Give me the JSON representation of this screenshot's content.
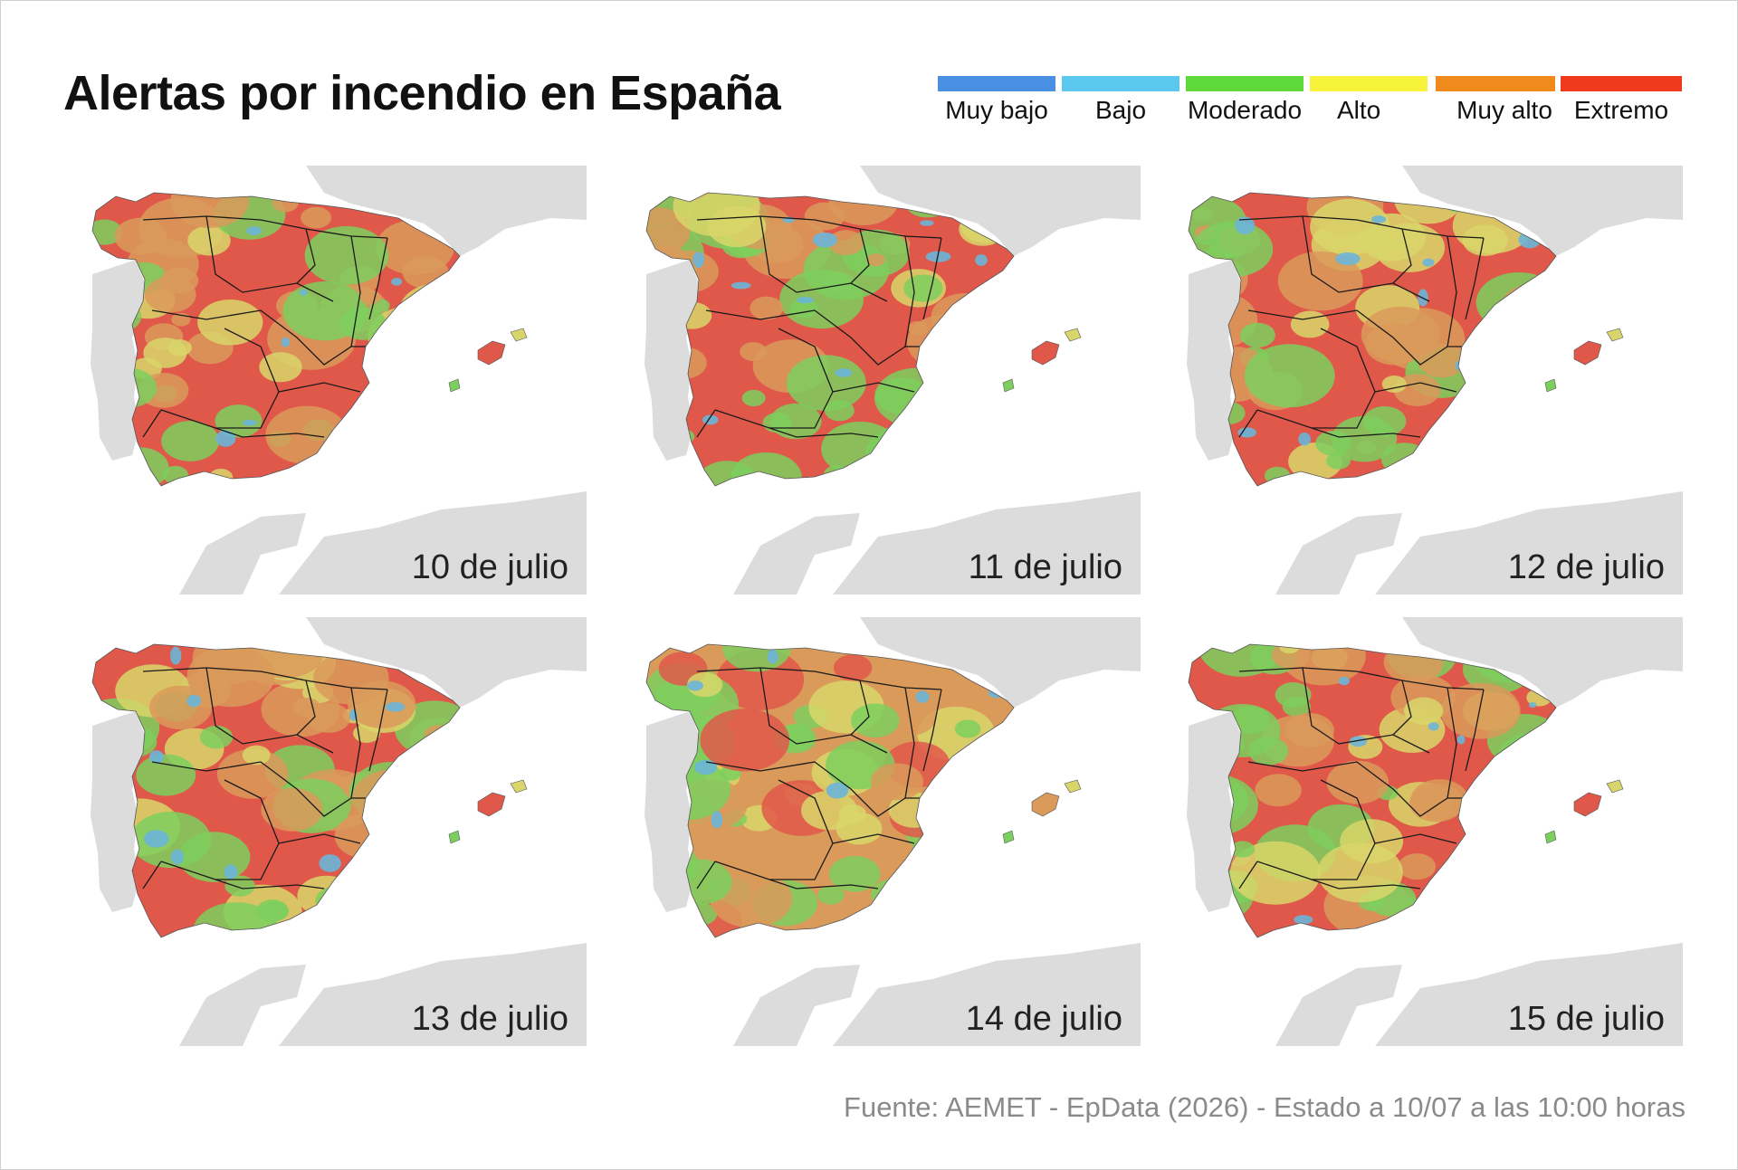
{
  "title": "Alertas por incendio en España",
  "legend": [
    {
      "label": "Muy bajo",
      "color": "#4a90e2"
    },
    {
      "label": "Bajo",
      "color": "#5bc8f0"
    },
    {
      "label": "Moderado",
      "color": "#5fd93a"
    },
    {
      "label": "Alto",
      "color": "#f6f33a"
    },
    {
      "label": "Muy alto",
      "color": "#f08a1c"
    },
    {
      "label": "Extremo",
      "color": "#f03a1e"
    }
  ],
  "map_colors": {
    "land_gray": "#dcdcdc",
    "extremo": "#e0584a",
    "muy_alto": "#d99a5a",
    "alto": "#d8d66a",
    "moderado": "#7ccf5e",
    "bajo": "#6bb5d8",
    "border": "#1a1a1a"
  },
  "panels": [
    {
      "date": "10 de julio",
      "dominant": "extremo"
    },
    {
      "date": "11 de julio",
      "dominant": "extremo"
    },
    {
      "date": "12 de julio",
      "dominant": "extremo"
    },
    {
      "date": "13 de julio",
      "dominant": "extremo"
    },
    {
      "date": "14 de julio",
      "dominant": "muy_alto"
    },
    {
      "date": "15 de julio",
      "dominant": "extremo"
    }
  ],
  "source": "Fuente: AEMET - EpData (2026) - Estado a 10/07 a las 10:00 horas"
}
